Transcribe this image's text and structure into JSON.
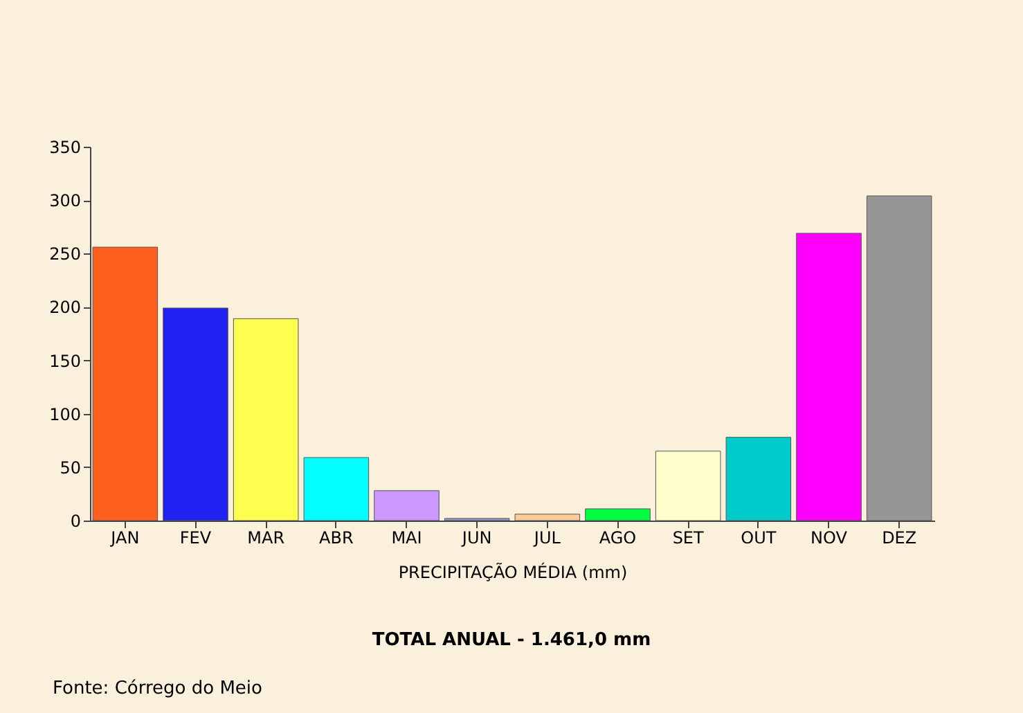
{
  "chart_data": {
    "type": "bar",
    "xlabel": "PRECIPITAÇÃO MÉDIA (mm)",
    "categories": [
      "JAN",
      "FEV",
      "MAR",
      "ABR",
      "MAI",
      "JUN",
      "JUL",
      "AGO",
      "SET",
      "OUT",
      "NOV",
      "DEZ"
    ],
    "values": [
      256,
      199,
      189,
      59,
      28,
      2,
      6,
      11,
      65,
      78,
      269,
      304
    ],
    "colors": [
      "#ff6020",
      "#2020f0",
      "#ffff50",
      "#00ffff",
      "#cc99ff",
      "#9999cc",
      "#ffcc99",
      "#00ff40",
      "#ffffcc",
      "#00cccc",
      "#ff00ff",
      "#969696"
    ],
    "ylim": [
      0,
      350
    ],
    "yticks": [
      0,
      50,
      100,
      150,
      200,
      250,
      300,
      350
    ],
    "annotations": [
      "TOTAL ANUAL - 1.461,0 mm",
      "Fonte: Córrego do Meio"
    ]
  }
}
